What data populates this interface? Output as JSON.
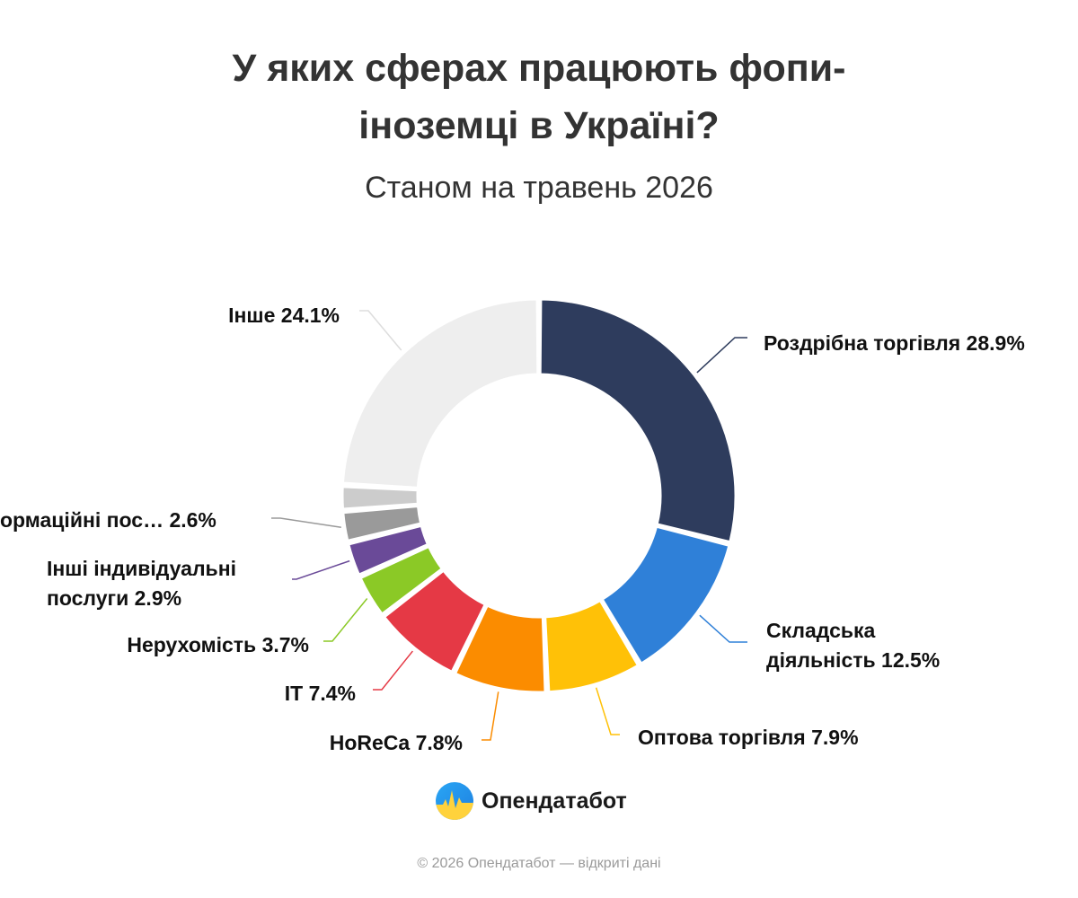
{
  "header": {
    "title_line1": "У яких сферах працюють фопи-",
    "title_line2": "іноземці в Україні?",
    "subtitle": "Станом на травень 2026"
  },
  "chart_data": {
    "type": "pie",
    "variant": "donut",
    "unit": "%",
    "series": [
      {
        "name": "Роздрібна торгівля",
        "label": "Роздрібна торгівля 28.9%",
        "value": 28.9,
        "color": "#2e3c5d"
      },
      {
        "name": "Складська діяльність",
        "label_lines": [
          "Складська",
          "діяльність 12.5%"
        ],
        "value": 12.5,
        "color": "#2f80d8"
      },
      {
        "name": "Оптова торгівля",
        "label": "Оптова торгівля 7.9%",
        "value": 7.9,
        "color": "#ffc107"
      },
      {
        "name": "HoReCa",
        "label": "HoReCa 7.8%",
        "value": 7.8,
        "color": "#fb8c00"
      },
      {
        "name": "ІТ",
        "label": "ІТ 7.4%",
        "value": 7.4,
        "color": "#e53945"
      },
      {
        "name": "Нерухомість",
        "label": "Нерухомість 3.7%",
        "value": 3.7,
        "color": "#8bc926"
      },
      {
        "name": "Інші індивідуальні послуги",
        "label_lines": [
          "Інші індивідуальні",
          "послуги 2.9%"
        ],
        "value": 2.9,
        "color": "#6a4a98"
      },
      {
        "name": "Інформаційні пос…",
        "label": "ормаційні пос… 2.6%",
        "value": 2.6,
        "color": "#9a9a9a"
      },
      {
        "name": "",
        "value": 2.1,
        "color": "#cccccc"
      },
      {
        "name": "Інше",
        "label": "Інше 24.1%",
        "value": 24.1,
        "color": "#eeeeee"
      }
    ]
  },
  "brand": {
    "name": "Опендатабот",
    "icon": "opendatabot-logo-icon"
  },
  "footer": {
    "copyright": "© 2026 Опендатабот — відкриті дані"
  }
}
